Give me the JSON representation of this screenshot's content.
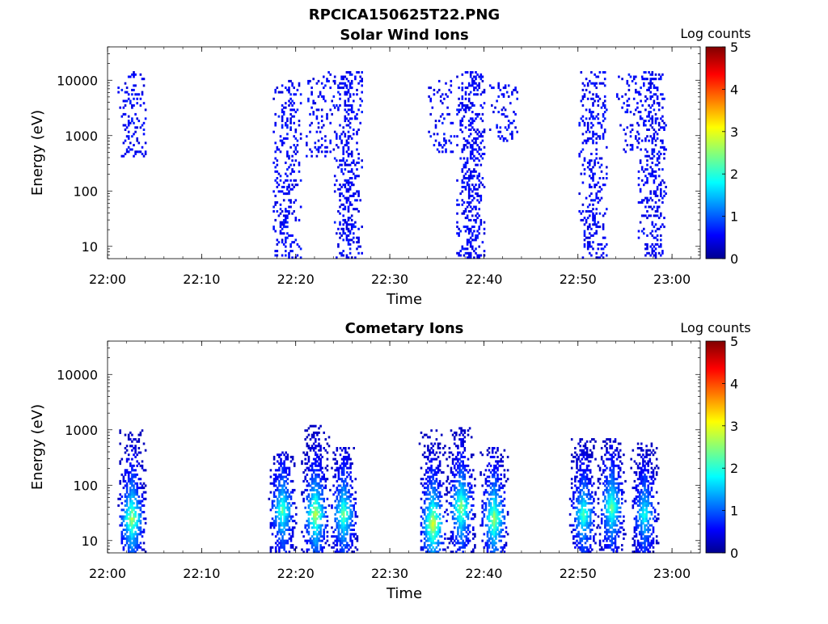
{
  "figure_title": "RPCICA150625T22.PNG",
  "chart_data": [
    {
      "type": "heatmap",
      "title": "Solar Wind Ions",
      "xlabel": "Time",
      "ylabel": "Energy (eV)",
      "x_ticks": [
        "22:00",
        "22:10",
        "22:20",
        "22:30",
        "22:40",
        "22:50",
        "23:00"
      ],
      "x_range": [
        "22:00",
        "23:03"
      ],
      "y_ticks": [
        "10",
        "100",
        "1000",
        "10000"
      ],
      "y_scale": "log",
      "y_range": [
        6,
        40000
      ],
      "colorbar": {
        "label": "Log counts",
        "ticks": [
          "0",
          "1",
          "2",
          "3",
          "4",
          "5"
        ],
        "range": [
          0,
          5
        ],
        "colormap": "jet"
      },
      "bursts": [
        {
          "time": "22:02.5",
          "e_low": 400,
          "e_high": 14000,
          "level": 0.4
        },
        {
          "time": "22:19.0",
          "e_low": 6,
          "e_high": 10000,
          "level": 0.5
        },
        {
          "time": "22:22.5",
          "e_low": 400,
          "e_high": 14000,
          "level": 0.3
        },
        {
          "time": "22:25.5",
          "e_low": 6,
          "e_high": 14000,
          "level": 0.6
        },
        {
          "time": "22:35.5",
          "e_low": 500,
          "e_high": 10000,
          "level": 0.3
        },
        {
          "time": "22:38.5",
          "e_low": 6,
          "e_high": 14000,
          "level": 0.7
        },
        {
          "time": "22:42.0",
          "e_low": 800,
          "e_high": 10000,
          "level": 0.3
        },
        {
          "time": "22:51.5",
          "e_low": 6,
          "e_high": 14000,
          "level": 0.5
        },
        {
          "time": "22:55.5",
          "e_low": 500,
          "e_high": 14000,
          "level": 0.3
        },
        {
          "time": "22:57.8",
          "e_low": 6,
          "e_high": 14000,
          "level": 0.6
        }
      ]
    },
    {
      "type": "heatmap",
      "title": "Cometary Ions",
      "xlabel": "Time",
      "ylabel": "Energy (eV)",
      "x_ticks": [
        "22:00",
        "22:10",
        "22:20",
        "22:30",
        "22:40",
        "22:50",
        "23:00"
      ],
      "x_range": [
        "22:00",
        "23:03"
      ],
      "y_ticks": [
        "10",
        "100",
        "1000",
        "10000"
      ],
      "y_scale": "log",
      "y_range": [
        6,
        40000
      ],
      "colorbar": {
        "label": "Log counts",
        "ticks": [
          "0",
          "1",
          "2",
          "3",
          "4",
          "5"
        ],
        "range": [
          0,
          5
        ],
        "colormap": "jet"
      },
      "bursts": [
        {
          "time": "22:02.5",
          "e_low": 6,
          "e_high": 1000,
          "peak_energy": 25,
          "peak_log_counts": 2.7
        },
        {
          "time": "22:18.5",
          "e_low": 6,
          "e_high": 400,
          "peak_energy": 35,
          "peak_log_counts": 2.3
        },
        {
          "time": "22:22.0",
          "e_low": 6,
          "e_high": 1200,
          "peak_energy": 30,
          "peak_log_counts": 2.8
        },
        {
          "time": "22:25.0",
          "e_low": 6,
          "e_high": 500,
          "peak_energy": 30,
          "peak_log_counts": 2.4
        },
        {
          "time": "22:34.5",
          "e_low": 6,
          "e_high": 1000,
          "peak_energy": 20,
          "peak_log_counts": 3.0
        },
        {
          "time": "22:37.5",
          "e_low": 6,
          "e_high": 1100,
          "peak_energy": 40,
          "peak_log_counts": 2.6
        },
        {
          "time": "22:41.0",
          "e_low": 6,
          "e_high": 500,
          "peak_energy": 25,
          "peak_log_counts": 2.7
        },
        {
          "time": "22:50.5",
          "e_low": 6,
          "e_high": 700,
          "peak_energy": 30,
          "peak_log_counts": 2.2
        },
        {
          "time": "22:53.5",
          "e_low": 6,
          "e_high": 700,
          "peak_energy": 40,
          "peak_log_counts": 2.4
        },
        {
          "time": "22:57.0",
          "e_low": 6,
          "e_high": 600,
          "peak_energy": 30,
          "peak_log_counts": 2.0
        }
      ]
    }
  ]
}
